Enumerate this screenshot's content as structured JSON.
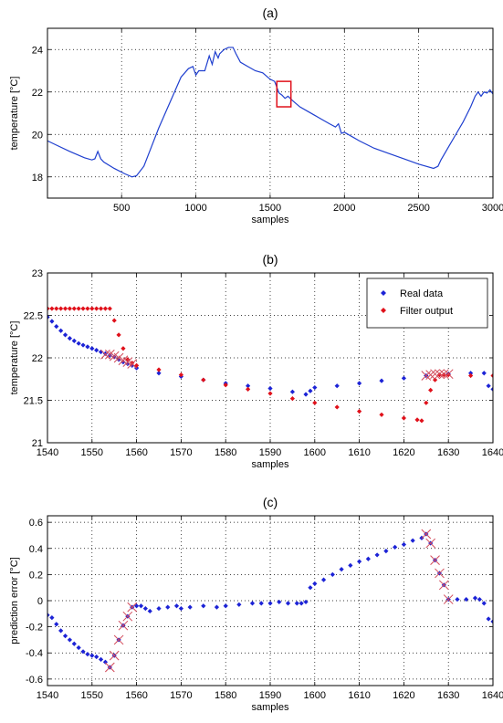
{
  "chart_data": [
    {
      "type": "line",
      "title": "(a)",
      "xlabel": "samples",
      "ylabel": "temperature [°C]",
      "xlim": [
        1,
        3000
      ],
      "ylim": [
        17,
        25
      ],
      "xticks": [
        500,
        1000,
        1500,
        2000,
        2500,
        3000
      ],
      "yticks": [
        18,
        20,
        22,
        24
      ],
      "grid": true,
      "series": [
        {
          "color": "#1f3fcf",
          "x": [
            1,
            60,
            150,
            250,
            300,
            320,
            340,
            360,
            380,
            450,
            520,
            570,
            600,
            650,
            700,
            750,
            800,
            850,
            900,
            950,
            980,
            1000,
            1020,
            1060,
            1090,
            1110,
            1130,
            1150,
            1160,
            1190,
            1220,
            1250,
            1270,
            1300,
            1350,
            1400,
            1450,
            1500,
            1530,
            1560,
            1580,
            1600,
            1620,
            1650,
            1700,
            1750,
            1800,
            1850,
            1900,
            1940,
            1960,
            1980,
            2000,
            2050,
            2100,
            2200,
            2300,
            2400,
            2500,
            2600,
            2630,
            2650,
            2700,
            2750,
            2800,
            2850,
            2880,
            2900,
            2920,
            2940,
            2960,
            2980,
            3000
          ],
          "y": [
            19.7,
            19.5,
            19.2,
            18.9,
            18.8,
            18.85,
            19.2,
            18.85,
            18.7,
            18.4,
            18.15,
            18.0,
            18.05,
            18.5,
            19.4,
            20.3,
            21.1,
            21.9,
            22.7,
            23.1,
            23.2,
            22.8,
            23.0,
            23.0,
            23.7,
            23.3,
            23.9,
            23.6,
            23.8,
            24.0,
            24.1,
            24.1,
            23.8,
            23.4,
            23.2,
            23.0,
            22.9,
            22.6,
            22.5,
            21.95,
            21.85,
            21.7,
            21.8,
            21.6,
            21.3,
            21.1,
            20.9,
            20.7,
            20.5,
            20.35,
            20.5,
            20.05,
            20.1,
            19.9,
            19.7,
            19.35,
            19.1,
            18.85,
            18.6,
            18.4,
            18.5,
            18.8,
            19.4,
            20.0,
            20.6,
            21.3,
            21.8,
            22.0,
            21.8,
            22.0,
            21.95,
            22.1,
            21.9
          ]
        }
      ],
      "annotations": [
        {
          "type": "rectangle",
          "x_range": [
            1545,
            1640
          ],
          "y_range": [
            21.3,
            22.5
          ],
          "color": "#e0101a"
        }
      ]
    },
    {
      "type": "scatter",
      "title": "(b)",
      "xlabel": "samples",
      "ylabel": "temperature [°C]",
      "xlim": [
        1540,
        1640
      ],
      "ylim": [
        21,
        23
      ],
      "xticks": [
        1540,
        1550,
        1560,
        1570,
        1580,
        1590,
        1600,
        1610,
        1620,
        1630,
        1640
      ],
      "yticks": [
        21,
        21.5,
        22,
        22.5,
        23
      ],
      "grid": true,
      "legend": "top-right",
      "series": [
        {
          "name": "Real data",
          "color": "#1c23d6",
          "marker": "diamond",
          "x": [
            1540,
            1541,
            1542,
            1543,
            1544,
            1545,
            1546,
            1547,
            1548,
            1549,
            1550,
            1551,
            1552,
            1553,
            1554,
            1555,
            1556,
            1557,
            1558,
            1559,
            1560,
            1565,
            1570,
            1575,
            1580,
            1585,
            1590,
            1595,
            1598,
            1599,
            1600,
            1605,
            1610,
            1615,
            1620,
            1625,
            1630,
            1635,
            1638,
            1639,
            1640
          ],
          "y": [
            22.48,
            22.43,
            22.37,
            22.32,
            22.27,
            22.23,
            22.2,
            22.17,
            22.15,
            22.13,
            22.11,
            22.09,
            22.07,
            22.05,
            22.03,
            22.01,
            21.98,
            21.95,
            21.93,
            21.91,
            21.88,
            21.82,
            21.78,
            21.74,
            21.7,
            21.67,
            21.64,
            21.6,
            21.57,
            21.61,
            21.65,
            21.67,
            21.7,
            21.73,
            21.76,
            21.79,
            21.81,
            21.82,
            21.82,
            21.67,
            21.63
          ]
        },
        {
          "name": "Filter output",
          "color": "#e0101a",
          "marker": "diamond",
          "x": [
            1540,
            1541,
            1542,
            1543,
            1544,
            1545,
            1546,
            1547,
            1548,
            1549,
            1550,
            1551,
            1552,
            1553,
            1554,
            1555,
            1556,
            1557,
            1558,
            1559,
            1560,
            1565,
            1570,
            1575,
            1580,
            1585,
            1590,
            1595,
            1600,
            1605,
            1610,
            1615,
            1620,
            1623,
            1624,
            1625,
            1626,
            1627,
            1628,
            1629,
            1630,
            1635,
            1640
          ],
          "y": [
            22.58,
            22.58,
            22.58,
            22.58,
            22.58,
            22.58,
            22.58,
            22.58,
            22.58,
            22.58,
            22.58,
            22.58,
            22.58,
            22.58,
            22.58,
            22.44,
            22.27,
            22.11,
            21.98,
            21.94,
            21.91,
            21.86,
            21.8,
            21.74,
            21.68,
            21.63,
            21.58,
            21.52,
            21.47,
            21.42,
            21.37,
            21.33,
            21.29,
            21.27,
            21.26,
            21.47,
            21.62,
            21.74,
            21.8,
            21.8,
            21.8,
            21.79,
            21.79
          ]
        },
        {
          "name": "",
          "color": "#d24a5a",
          "marker": "x",
          "x": [
            1553,
            1554,
            1555,
            1556,
            1557,
            1558,
            1559,
            1625,
            1626,
            1627,
            1628,
            1629,
            1630
          ],
          "y": [
            22.04,
            22.04,
            22.02,
            22.0,
            21.97,
            21.95,
            21.93,
            21.79,
            21.8,
            21.81,
            21.81,
            21.81,
            21.81
          ]
        }
      ]
    },
    {
      "type": "scatter",
      "title": "(c)",
      "xlabel": "samples",
      "ylabel": "prediction error [°C]",
      "xlim": [
        1540,
        1640
      ],
      "ylim": [
        -0.65,
        0.65
      ],
      "xticks": [
        1540,
        1550,
        1560,
        1570,
        1580,
        1590,
        1600,
        1610,
        1620,
        1630,
        1640
      ],
      "yticks": [
        -0.6,
        -0.4,
        -0.2,
        0,
        0.2,
        0.4,
        0.6
      ],
      "grid": true,
      "series": [
        {
          "name": "",
          "color": "#1c23d6",
          "marker": "diamond",
          "x": [
            1540,
            1541,
            1542,
            1543,
            1544,
            1545,
            1546,
            1547,
            1548,
            1549,
            1550,
            1551,
            1552,
            1553,
            1554,
            1555,
            1556,
            1557,
            1558,
            1559,
            1560,
            1561,
            1562,
            1563,
            1565,
            1567,
            1569,
            1570,
            1572,
            1575,
            1578,
            1580,
            1583,
            1586,
            1588,
            1590,
            1592,
            1594,
            1596,
            1597,
            1598,
            1599,
            1600,
            1602,
            1604,
            1606,
            1608,
            1610,
            1612,
            1614,
            1616,
            1618,
            1620,
            1622,
            1624,
            1625,
            1626,
            1627,
            1628,
            1629,
            1630,
            1632,
            1634,
            1636,
            1637,
            1638,
            1639,
            1640
          ],
          "y": [
            -0.11,
            -0.13,
            -0.18,
            -0.23,
            -0.27,
            -0.3,
            -0.33,
            -0.36,
            -0.39,
            -0.41,
            -0.42,
            -0.43,
            -0.45,
            -0.47,
            -0.51,
            -0.42,
            -0.3,
            -0.19,
            -0.12,
            -0.05,
            -0.04,
            -0.04,
            -0.06,
            -0.08,
            -0.06,
            -0.05,
            -0.04,
            -0.06,
            -0.05,
            -0.04,
            -0.05,
            -0.04,
            -0.03,
            -0.02,
            -0.02,
            -0.02,
            -0.01,
            -0.02,
            -0.02,
            -0.02,
            -0.01,
            0.1,
            0.13,
            0.16,
            0.2,
            0.24,
            0.27,
            0.3,
            0.32,
            0.35,
            0.38,
            0.41,
            0.43,
            0.46,
            0.48,
            0.51,
            0.44,
            0.31,
            0.21,
            0.12,
            0.01,
            0.01,
            0.01,
            0.02,
            0.01,
            -0.02,
            -0.14,
            -0.16
          ]
        },
        {
          "name": "",
          "color": "#d24a5a",
          "marker": "x",
          "x": [
            1554,
            1555,
            1556,
            1557,
            1558,
            1559,
            1625,
            1626,
            1627,
            1628,
            1629,
            1630
          ],
          "y": [
            -0.51,
            -0.42,
            -0.3,
            -0.19,
            -0.12,
            -0.05,
            0.51,
            0.44,
            0.31,
            0.21,
            0.12,
            0.01
          ]
        }
      ]
    }
  ]
}
